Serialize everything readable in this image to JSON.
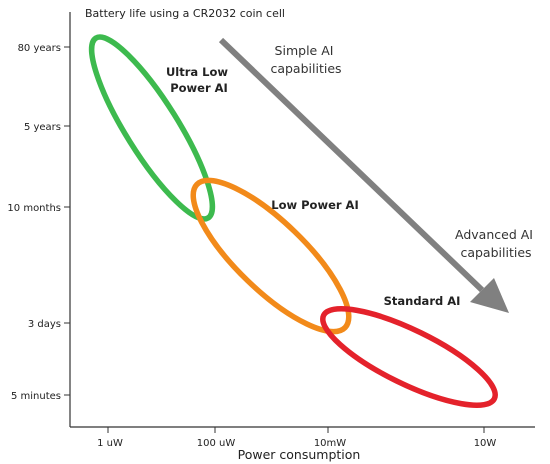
{
  "title": "Battery life using a CR2032 coin cell",
  "x_axis": {
    "label": "Power consumption",
    "ticks": [
      "1 uW",
      "100 uW",
      "10mW",
      "10W"
    ]
  },
  "y_axis": {
    "ticks": [
      "80 years",
      "5 years",
      "10 months",
      "3 days",
      "5 minutes"
    ]
  },
  "regions": [
    {
      "label_lines": [
        "Ultra Low",
        "Power AI"
      ],
      "color": "#3dba4e"
    },
    {
      "label_lines": [
        "Low Power AI"
      ],
      "color": "#f28a1a"
    },
    {
      "label_lines": [
        "Standard AI"
      ],
      "color": "#e4222b"
    }
  ],
  "trend": {
    "start_label_lines": [
      "Simple AI",
      "capabilities"
    ],
    "end_label_lines": [
      "Advanced AI",
      "capabilities"
    ],
    "color": "#808080"
  }
}
